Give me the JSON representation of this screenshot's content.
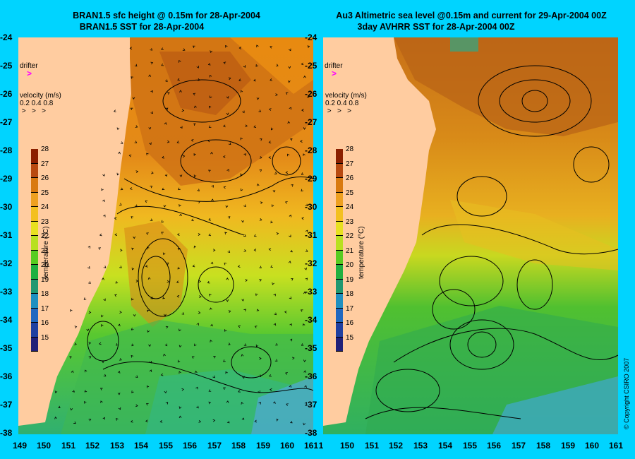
{
  "left_panel": {
    "title_line1": "BRAN1.5 sfc height @ 0.15m for 28-Apr-2004",
    "title_line2": "BRAN1.5 SST for 28-Apr-2004"
  },
  "right_panel": {
    "title_line1": "Au3 Altimetric sea level  @0.15m and current for 29-Apr-2004 00Z",
    "title_line2": "3day AVHRR SST for 28-Apr-2004 00Z"
  },
  "latitude_labels": [
    "-24",
    "-25",
    "-26",
    "-27",
    "-28",
    "-29",
    "-30",
    "-31",
    "-32",
    "-33",
    "-34",
    "-35",
    "-36",
    "-37",
    "-38"
  ],
  "longitude_labels_left": [
    "149",
    "150",
    "151",
    "152",
    "153",
    "154",
    "155",
    "156",
    "157",
    "158",
    "159",
    "160",
    "161"
  ],
  "longitude_labels_right": [
    "1",
    "150",
    "151",
    "152",
    "153",
    "154",
    "155",
    "156",
    "157",
    "158",
    "159",
    "160",
    "161"
  ],
  "drifter_label": "drifter",
  "velocity": {
    "title": "velocity (m/s)",
    "values": "0.2 0.4 0.8"
  },
  "colorbar": {
    "title": "temperature (°C)",
    "ticks": [
      "28",
      "27",
      "26",
      "25",
      "24",
      "23",
      "22",
      "21",
      "20",
      "19",
      "18",
      "17",
      "16",
      "15"
    ],
    "colors": [
      "#8b2000",
      "#b84a10",
      "#d97a10",
      "#eea020",
      "#f3c020",
      "#e8e020",
      "#b8e020",
      "#58cc20",
      "#20b040",
      "#209870",
      "#2090c0",
      "#2068c0",
      "#2040a0",
      "#202078"
    ]
  },
  "copyright": "© Copyright CSIRO 2007"
}
